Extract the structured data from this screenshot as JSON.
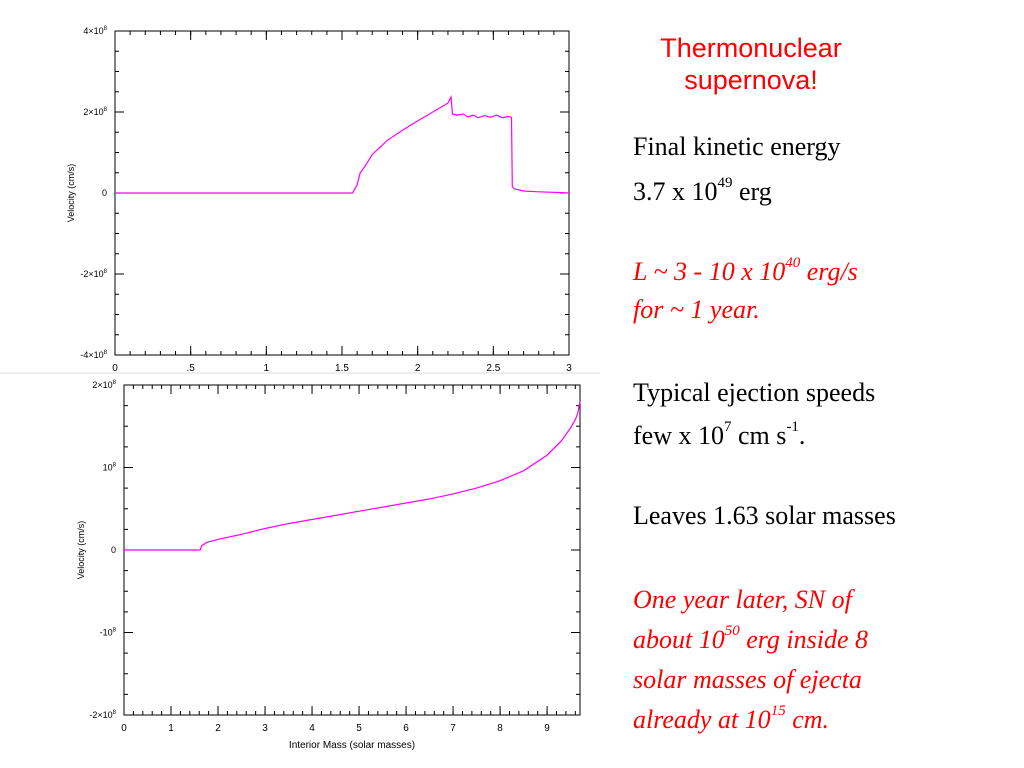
{
  "slide": {
    "title_line1": "Thermonuclear",
    "title_line2": "supernova!",
    "ke_label": "Final kinetic energy",
    "ke_value_pre": "3.7 x 10",
    "ke_value_exp": "49",
    "ke_value_post": " erg",
    "lum_pre": "L ~ 3 - 10 x 10",
    "lum_exp": "40",
    "lum_post": " erg/s",
    "lum_line2": "for ~ 1 year.",
    "eject_label": "Typical ejection speeds",
    "eject_pre": " few x 10",
    "eject_exp": "7",
    "eject_mid": " cm s",
    "eject_exp2": "-1",
    "eject_post": ".",
    "leaves": "Leaves 1.63 solar masses",
    "later_line1": "One year later, SN of",
    "later_line2_pre": "about 10",
    "later_line2_exp": "50",
    "later_line2_post": " erg inside 8",
    "later_line3": "solar masses of ejecta",
    "later_line4_pre": "already at 10",
    "later_line4_exp": "15",
    "later_line4_post": " cm."
  },
  "chart_data": [
    {
      "type": "line",
      "ylabel": "Velocity (cm/s)",
      "xlabel": "",
      "xlim": [
        0,
        3
      ],
      "ylim": [
        -400000000,
        400000000
      ],
      "xticks": [
        0,
        0.5,
        1,
        1.5,
        2,
        2.5,
        3
      ],
      "xtick_labels": [
        "0",
        ".5",
        "1",
        "1.5",
        "2",
        "2.5",
        "3"
      ],
      "yticks": [
        -400000000,
        -200000000,
        0,
        200000000,
        400000000
      ],
      "ytick_labels": [
        {
          "base": "-4×10",
          "exp": "8"
        },
        {
          "base": "-2×10",
          "exp": "8"
        },
        {
          "base": "0",
          "exp": ""
        },
        {
          "base": "2×10",
          "exp": "8"
        },
        {
          "base": "4×10",
          "exp": "8"
        }
      ],
      "line_color": "#ff00ff",
      "x": [
        0,
        1.57,
        1.6,
        1.62,
        1.65,
        1.7,
        1.8,
        1.9,
        2.0,
        2.1,
        2.2,
        2.22,
        2.23,
        2.26,
        2.3,
        2.33,
        2.37,
        2.4,
        2.44,
        2.48,
        2.52,
        2.56,
        2.6,
        2.62,
        2.625,
        2.64,
        2.7,
        2.8,
        2.95,
        3.0
      ],
      "y": [
        0,
        0,
        20000000,
        50000000,
        65000000,
        95000000,
        130000000,
        155000000,
        178000000,
        200000000,
        222000000,
        237000000,
        195000000,
        192000000,
        195000000,
        188000000,
        192000000,
        186000000,
        191000000,
        187000000,
        192000000,
        186000000,
        189000000,
        187000000,
        15000000,
        10000000,
        5000000,
        3000000,
        1000000,
        0
      ]
    },
    {
      "type": "line",
      "ylabel": "Velocity (cm/s)",
      "xlabel": "Interior Mass (solar masses)",
      "xlim": [
        0,
        9.7
      ],
      "ylim": [
        -200000000,
        200000000
      ],
      "xticks": [
        0,
        1,
        2,
        3,
        4,
        5,
        6,
        7,
        8,
        9
      ],
      "xtick_labels": [
        "0",
        "1",
        "2",
        "3",
        "4",
        "5",
        "6",
        "7",
        "8",
        "9"
      ],
      "yticks": [
        -200000000,
        -100000000,
        0,
        100000000,
        200000000
      ],
      "ytick_labels": [
        {
          "base": "-2×10",
          "exp": "8"
        },
        {
          "base": "-10",
          "exp": "8"
        },
        {
          "base": "0",
          "exp": ""
        },
        {
          "base": "10",
          "exp": "8"
        },
        {
          "base": "2×10",
          "exp": "8"
        }
      ],
      "line_color": "#ff00ff",
      "x": [
        0,
        1.62,
        1.65,
        1.75,
        2.0,
        2.5,
        3.0,
        3.5,
        4.0,
        4.5,
        5.0,
        5.5,
        6.0,
        6.5,
        7.0,
        7.5,
        8.0,
        8.5,
        9.0,
        9.3,
        9.5,
        9.6,
        9.65,
        9.7
      ],
      "y": [
        0,
        0,
        5000000,
        9000000,
        13000000,
        19000000,
        26000000,
        32000000,
        37000000,
        42000000,
        47000000,
        52000000,
        57000000,
        62000000,
        68000000,
        75000000,
        84000000,
        96000000,
        115000000,
        132000000,
        148000000,
        158000000,
        165000000,
        180000000
      ]
    }
  ]
}
